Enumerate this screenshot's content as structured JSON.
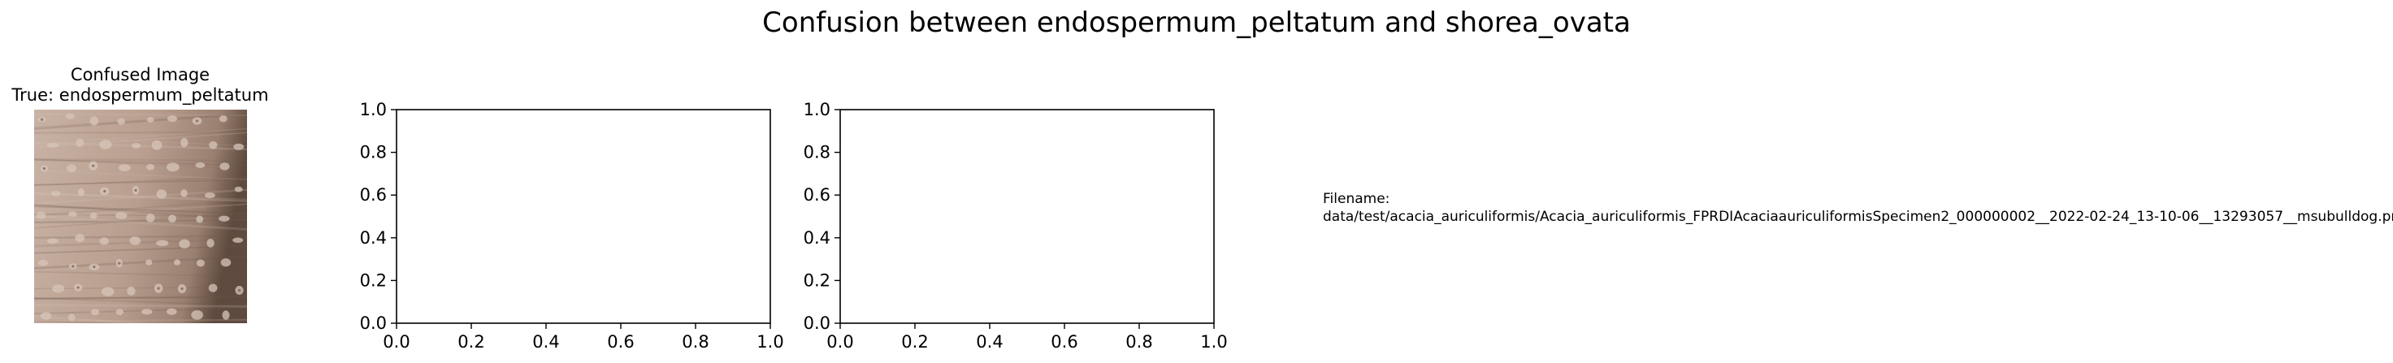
{
  "figure": {
    "title": "Confusion between endospermum_peltatum and shorea_ovata"
  },
  "image_panel": {
    "title_line1": "Confused Image",
    "title_line2": "True: endospermum_peltatum",
    "image_description": "microscope wood texture",
    "colors": {
      "base": "#b89e8e",
      "light": "#d7c6ba",
      "dark": "#6e5a4d"
    }
  },
  "filename_panel": {
    "label": "Filename:",
    "path": "data/test/acacia_auriculiformis/Acacia_auriculiformis_FPRDIAcaciaauriculiformisSpecimen2_000000002__2022-02-24_13-10-06__13293057__msubulldog.png"
  },
  "chart_data": [
    {
      "type": "line",
      "series": [],
      "xlim": [
        0.0,
        1.0
      ],
      "ylim": [
        0.0,
        1.0
      ],
      "xticks": [
        "0.0",
        "0.2",
        "0.4",
        "0.6",
        "0.8",
        "1.0"
      ],
      "yticks": [
        "0.0",
        "0.2",
        "0.4",
        "0.6",
        "0.8",
        "1.0"
      ],
      "grid": false
    },
    {
      "type": "line",
      "series": [],
      "xlim": [
        0.0,
        1.0
      ],
      "ylim": [
        0.0,
        1.0
      ],
      "xticks": [
        "0.0",
        "0.2",
        "0.4",
        "0.6",
        "0.8",
        "1.0"
      ],
      "yticks": [
        "0.0",
        "0.2",
        "0.4",
        "0.6",
        "0.8",
        "1.0"
      ],
      "grid": false
    }
  ]
}
